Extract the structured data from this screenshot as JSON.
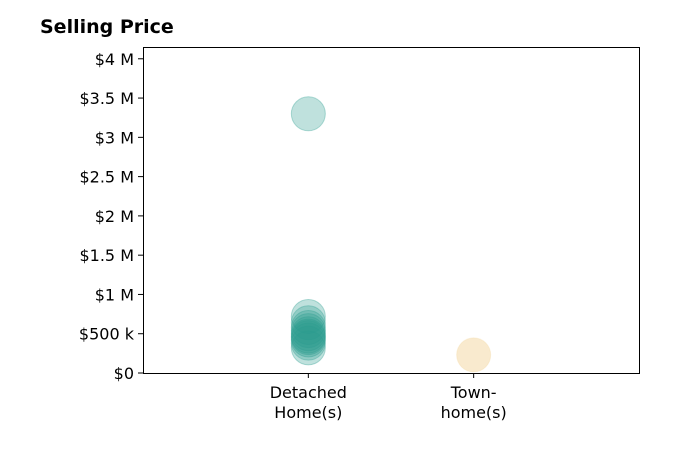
{
  "chart_data": {
    "type": "scatter",
    "title": "Selling Price",
    "xlabel": "",
    "ylabel": "",
    "categories": [
      [
        "Detached",
        "Home(s)"
      ],
      [
        "Town-",
        "home(s)"
      ]
    ],
    "y_ticks": [
      {
        "value": 0,
        "label": "$0"
      },
      {
        "value": 500000,
        "label": "$500 k"
      },
      {
        "value": 1000000,
        "label": "$1 M"
      },
      {
        "value": 1500000,
        "label": "$1.5 M"
      },
      {
        "value": 2000000,
        "label": "$2 M"
      },
      {
        "value": 2500000,
        "label": "$2.5 M"
      },
      {
        "value": 3000000,
        "label": "$3 M"
      },
      {
        "value": 3500000,
        "label": "$3.5 M"
      },
      {
        "value": 4000000,
        "label": "$4 M"
      }
    ],
    "ylim": [
      0,
      4150000
    ],
    "xlim": [
      -1,
      2
    ],
    "grid": false,
    "series": [
      {
        "color": "#2a9d8f",
        "category_index": 0,
        "values": [
          3300000,
          720000,
          640000,
          580000,
          540000,
          500000,
          470000,
          450000,
          420000,
          380000,
          320000
        ]
      },
      {
        "color": "#f4d9a6",
        "category_index": 1,
        "values": [
          230000
        ]
      }
    ]
  }
}
